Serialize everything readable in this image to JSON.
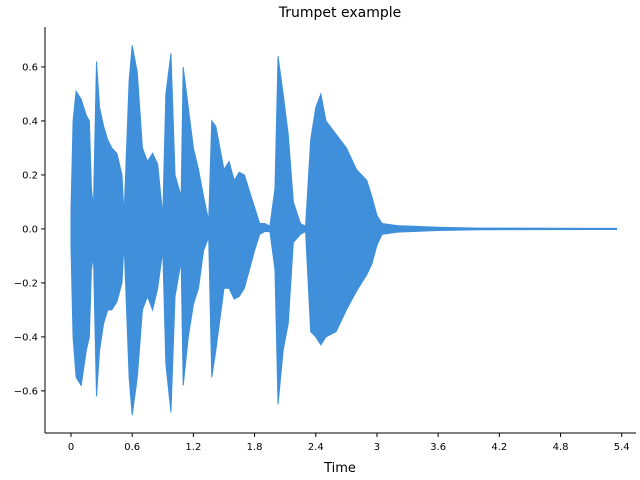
{
  "chart_data": {
    "type": "waveform",
    "title": "Trumpet example",
    "xlabel": "Time",
    "color": "#3f8fdb",
    "x": [
      0,
      0.02,
      0.05,
      0.1,
      0.15,
      0.18,
      0.2,
      0.22,
      0.25,
      0.28,
      0.32,
      0.36,
      0.4,
      0.45,
      0.5,
      0.52,
      0.57,
      0.6,
      0.65,
      0.7,
      0.75,
      0.8,
      0.85,
      0.9,
      0.93,
      0.98,
      1.02,
      1.08,
      1.1,
      1.15,
      1.2,
      1.25,
      1.3,
      1.35,
      1.38,
      1.42,
      1.5,
      1.55,
      1.6,
      1.65,
      1.7,
      1.75,
      1.8,
      1.85,
      1.9,
      1.95,
      2.0,
      2.03,
      2.08,
      2.13,
      2.18,
      2.25,
      2.3,
      2.35,
      2.4,
      2.45,
      2.5,
      2.6,
      2.7,
      2.8,
      2.9,
      2.95,
      3.0,
      3.05,
      3.2,
      3.6,
      4.0,
      5.35
    ],
    "max": [
      0.07,
      0.4,
      0.51,
      0.48,
      0.42,
      0.4,
      0.15,
      0.08,
      0.62,
      0.45,
      0.38,
      0.33,
      0.3,
      0.28,
      0.2,
      0.05,
      0.55,
      0.68,
      0.58,
      0.3,
      0.25,
      0.28,
      0.24,
      0.05,
      0.5,
      0.65,
      0.2,
      0.12,
      0.6,
      0.45,
      0.3,
      0.22,
      0.12,
      0.03,
      0.4,
      0.38,
      0.22,
      0.25,
      0.18,
      0.21,
      0.2,
      0.14,
      0.08,
      0.02,
      0.02,
      0.01,
      0.15,
      0.64,
      0.5,
      0.35,
      0.1,
      0.02,
      0.01,
      0.33,
      0.45,
      0.5,
      0.4,
      0.35,
      0.3,
      0.22,
      0.18,
      0.12,
      0.05,
      0.02,
      0.012,
      0.006,
      0.003,
      0.002
    ],
    "min": [
      -0.07,
      -0.4,
      -0.55,
      -0.58,
      -0.45,
      -0.4,
      -0.15,
      -0.1,
      -0.62,
      -0.45,
      -0.35,
      -0.3,
      -0.3,
      -0.27,
      -0.2,
      -0.05,
      -0.55,
      -0.69,
      -0.55,
      -0.3,
      -0.25,
      -0.3,
      -0.22,
      -0.08,
      -0.5,
      -0.68,
      -0.25,
      -0.12,
      -0.58,
      -0.4,
      -0.28,
      -0.22,
      -0.08,
      -0.03,
      -0.55,
      -0.45,
      -0.22,
      -0.22,
      -0.26,
      -0.25,
      -0.22,
      -0.15,
      -0.08,
      -0.02,
      -0.01,
      -0.01,
      -0.15,
      -0.65,
      -0.45,
      -0.35,
      -0.05,
      -0.02,
      -0.01,
      -0.38,
      -0.4,
      -0.43,
      -0.4,
      -0.38,
      -0.3,
      -0.23,
      -0.17,
      -0.13,
      -0.06,
      -0.02,
      -0.012,
      -0.006,
      -0.003,
      -0.002
    ],
    "xlim": [
      -0.255,
      5.54
    ],
    "ylim": [
      -0.756,
      0.748
    ],
    "xticks": [
      0,
      0.6,
      1.2,
      1.8,
      2.4,
      3,
      3.6,
      4.2,
      4.8,
      5.4
    ],
    "yticks": [
      {
        "value": -0.6,
        "label": "−0.6"
      },
      {
        "value": -0.4,
        "label": "−0.4"
      },
      {
        "value": -0.2,
        "label": "−0.2"
      },
      {
        "value": 0,
        "label": "0.0"
      },
      0.2,
      0.4,
      0.6
    ]
  }
}
